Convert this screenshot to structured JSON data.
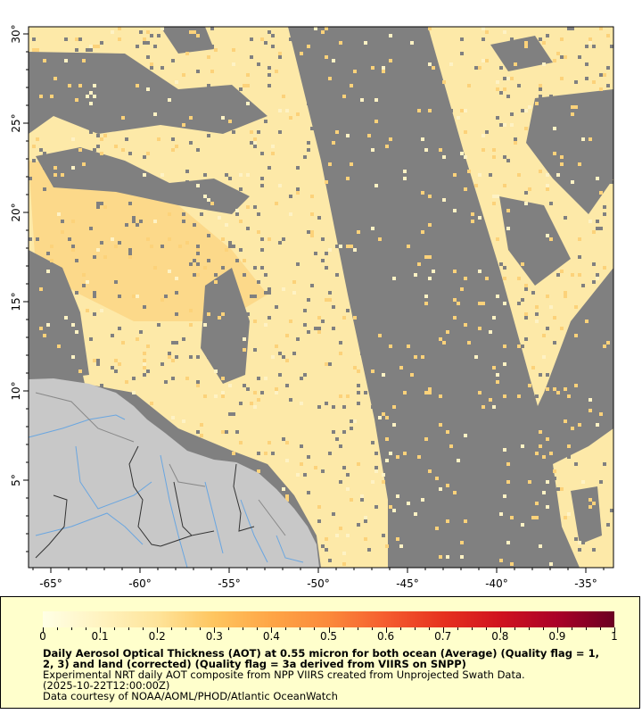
{
  "map": {
    "lon_ticks": [
      "-65°",
      "-60°",
      "-55°",
      "-50°",
      "-45°",
      "-40°",
      "-35°"
    ],
    "lat_ticks": [
      "30°",
      "25°",
      "20°",
      "15°",
      "10°",
      "5°"
    ],
    "colors": {
      "no_data": "#808080",
      "land": "#c8c8c8",
      "rivers": "#6aa6e0",
      "borders": "#333333"
    }
  },
  "legend": {
    "tick_labels": [
      "0",
      "0.1",
      "0.2",
      "0.3",
      "0.4",
      "0.5",
      "0.6",
      "0.7",
      "0.8",
      "0.9",
      "1"
    ],
    "title_line1": "Daily Aerosol Optical Thickness (AOT) at 0.55 micron for both ocean (Average) (Quality flag = 1,",
    "title_line2": "2, 3) and land (corrected) (Quality flag = 3a derived from VIIRS on SNPP)",
    "subtitle": "Experimental NRT daily AOT composite from NPP VIIRS created from Unprojected Swath Data.",
    "time": "(2025-10-22T12:00:00Z)",
    "credit": "Data courtesy of NOAA/AOML/PHOD/Atlantic OceanWatch",
    "colormap": [
      "#ffffe5",
      "#fee49a",
      "#fec55f",
      "#fb8a3b",
      "#e6321f",
      "#6b0022"
    ]
  }
}
